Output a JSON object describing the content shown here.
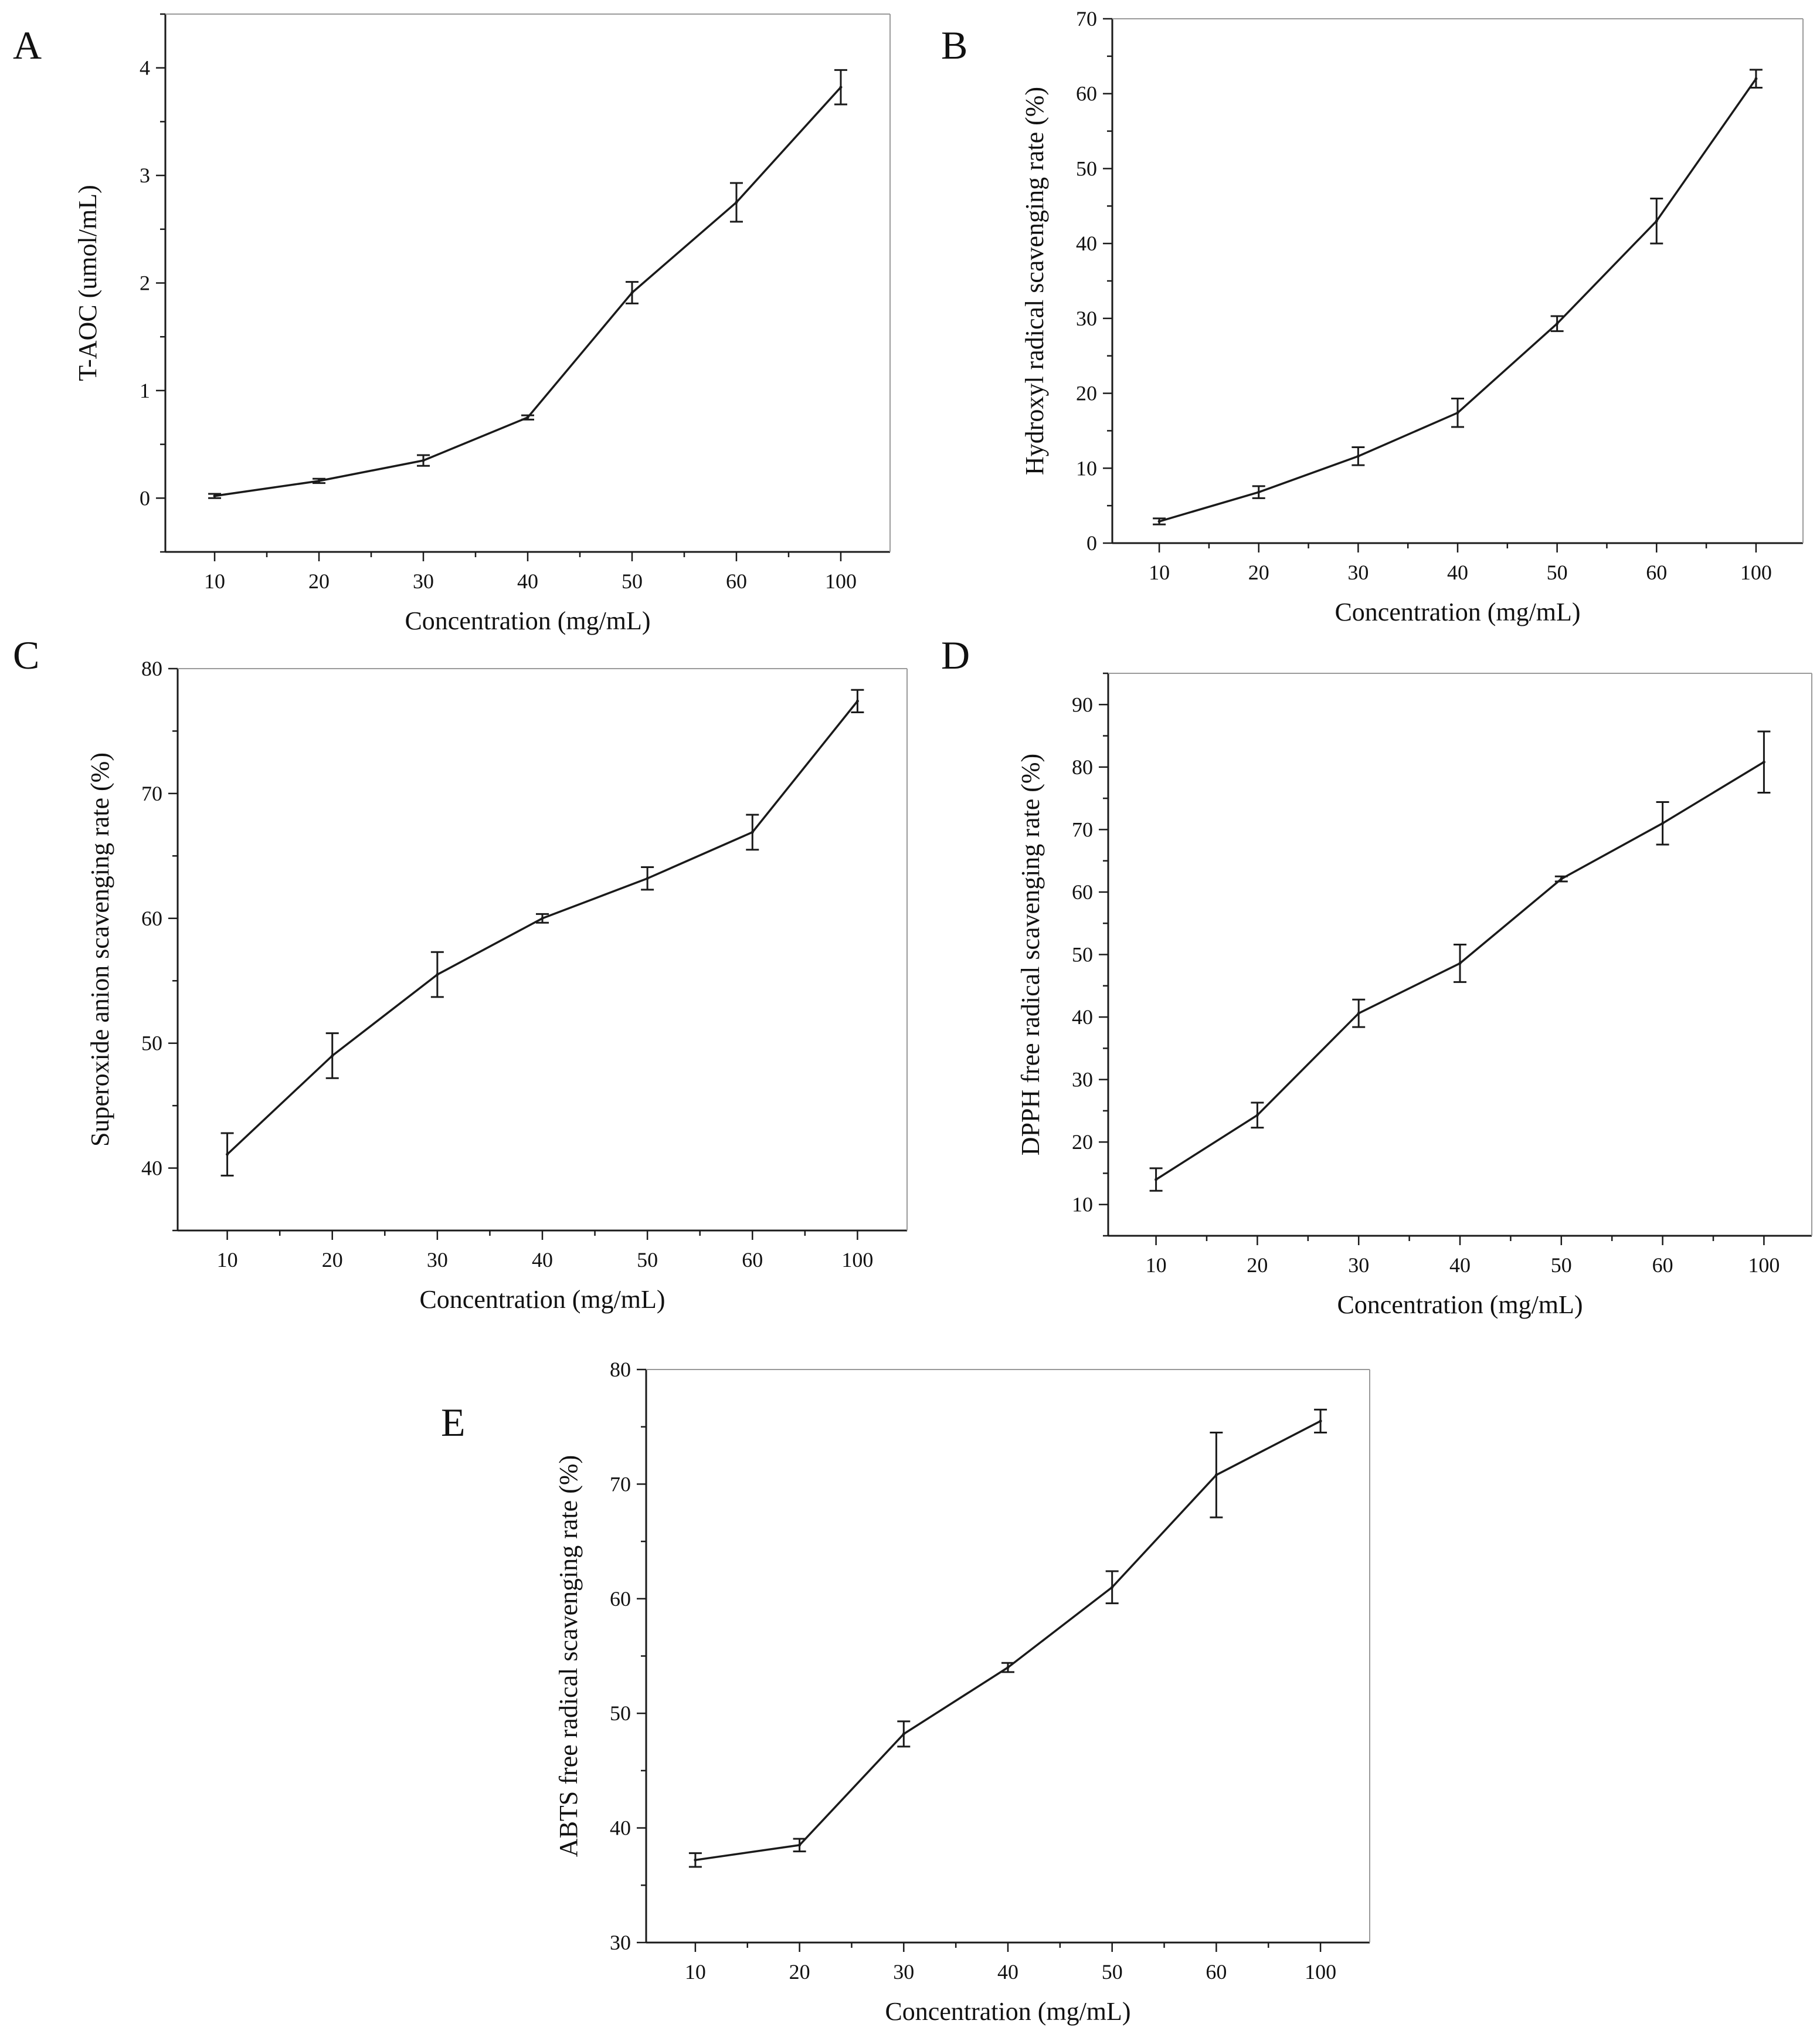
{
  "figure": {
    "colors": {
      "line": "#1a1a1a",
      "axis": "#1a1a1a",
      "text": "#111111",
      "background": "#ffffff"
    }
  },
  "chart_data": [
    {
      "panel": "A",
      "type": "line",
      "categories": [
        "10",
        "20",
        "30",
        "40",
        "50",
        "60",
        "100"
      ],
      "values": [
        0.02,
        0.16,
        0.35,
        0.75,
        1.91,
        2.75,
        3.82
      ],
      "errors": [
        0.02,
        0.02,
        0.05,
        0.02,
        0.1,
        0.18,
        0.16
      ],
      "xlabel": "Concentration (mg/mL)",
      "ylabel": "T-AOC (umol/mL)",
      "ylim": [
        -0.5,
        4.5
      ],
      "yticks": [
        0,
        1,
        2,
        3,
        4
      ],
      "ytick_labels": [
        "0",
        "1",
        "2",
        "3",
        "4"
      ],
      "grid": false
    },
    {
      "panel": "B",
      "type": "line",
      "categories": [
        "10",
        "20",
        "30",
        "40",
        "50",
        "60",
        "100"
      ],
      "values": [
        2.9,
        6.8,
        11.6,
        17.4,
        29.3,
        43.0,
        62.0
      ],
      "errors": [
        0.4,
        0.8,
        1.2,
        1.9,
        1.0,
        3.0,
        1.2
      ],
      "xlabel": "Concentration (mg/mL)",
      "ylabel": "Hydroxyl radical scavenging rate (%)",
      "ylim": [
        0,
        70
      ],
      "yticks": [
        0,
        10,
        20,
        30,
        40,
        50,
        60,
        70
      ],
      "ytick_labels": [
        "0",
        "10",
        "20",
        "30",
        "40",
        "50",
        "60",
        "70"
      ],
      "grid": false
    },
    {
      "panel": "C",
      "type": "line",
      "categories": [
        "10",
        "20",
        "30",
        "40",
        "50",
        "60",
        "100"
      ],
      "values": [
        41.1,
        49.0,
        55.5,
        60.0,
        63.2,
        66.9,
        77.4
      ],
      "errors": [
        1.7,
        1.8,
        1.8,
        0.35,
        0.9,
        1.4,
        0.9
      ],
      "xlabel": "Concentration (mg/mL)",
      "ylabel": "Superoxide anion scavenging rate (%)",
      "ylim": [
        35,
        80
      ],
      "yticks": [
        40,
        50,
        60,
        70,
        80
      ],
      "ytick_labels": [
        "40",
        "50",
        "60",
        "70",
        "80"
      ],
      "grid": false
    },
    {
      "panel": "D",
      "type": "line",
      "categories": [
        "10",
        "20",
        "30",
        "40",
        "50",
        "60",
        "100"
      ],
      "values": [
        14.0,
        24.3,
        40.6,
        48.6,
        62.1,
        71.0,
        80.8
      ],
      "errors": [
        1.8,
        2.0,
        2.2,
        3.0,
        0.4,
        3.4,
        4.9
      ],
      "xlabel": "Concentration (mg/mL)",
      "ylabel": "DPPH free radical scavenging rate (%)",
      "ylim": [
        5,
        95
      ],
      "yticks": [
        10,
        20,
        30,
        40,
        50,
        60,
        70,
        80,
        90
      ],
      "ytick_labels": [
        "10",
        "20",
        "30",
        "40",
        "50",
        "60",
        "70",
        "80",
        "90"
      ],
      "grid": false
    },
    {
      "panel": "E",
      "type": "line",
      "categories": [
        "10",
        "20",
        "30",
        "40",
        "50",
        "60",
        "100"
      ],
      "values": [
        37.2,
        38.5,
        48.2,
        54.0,
        61.0,
        70.8,
        75.5
      ],
      "errors": [
        0.6,
        0.55,
        1.1,
        0.4,
        1.4,
        3.7,
        1.0
      ],
      "xlabel": "Concentration (mg/mL)",
      "ylabel": "ABTS free radical scavenging rate (%)",
      "ylim": [
        30,
        80
      ],
      "yticks": [
        30,
        40,
        50,
        60,
        70,
        80
      ],
      "ytick_labels": [
        "30",
        "40",
        "50",
        "60",
        "70",
        "80"
      ],
      "grid": false
    }
  ]
}
